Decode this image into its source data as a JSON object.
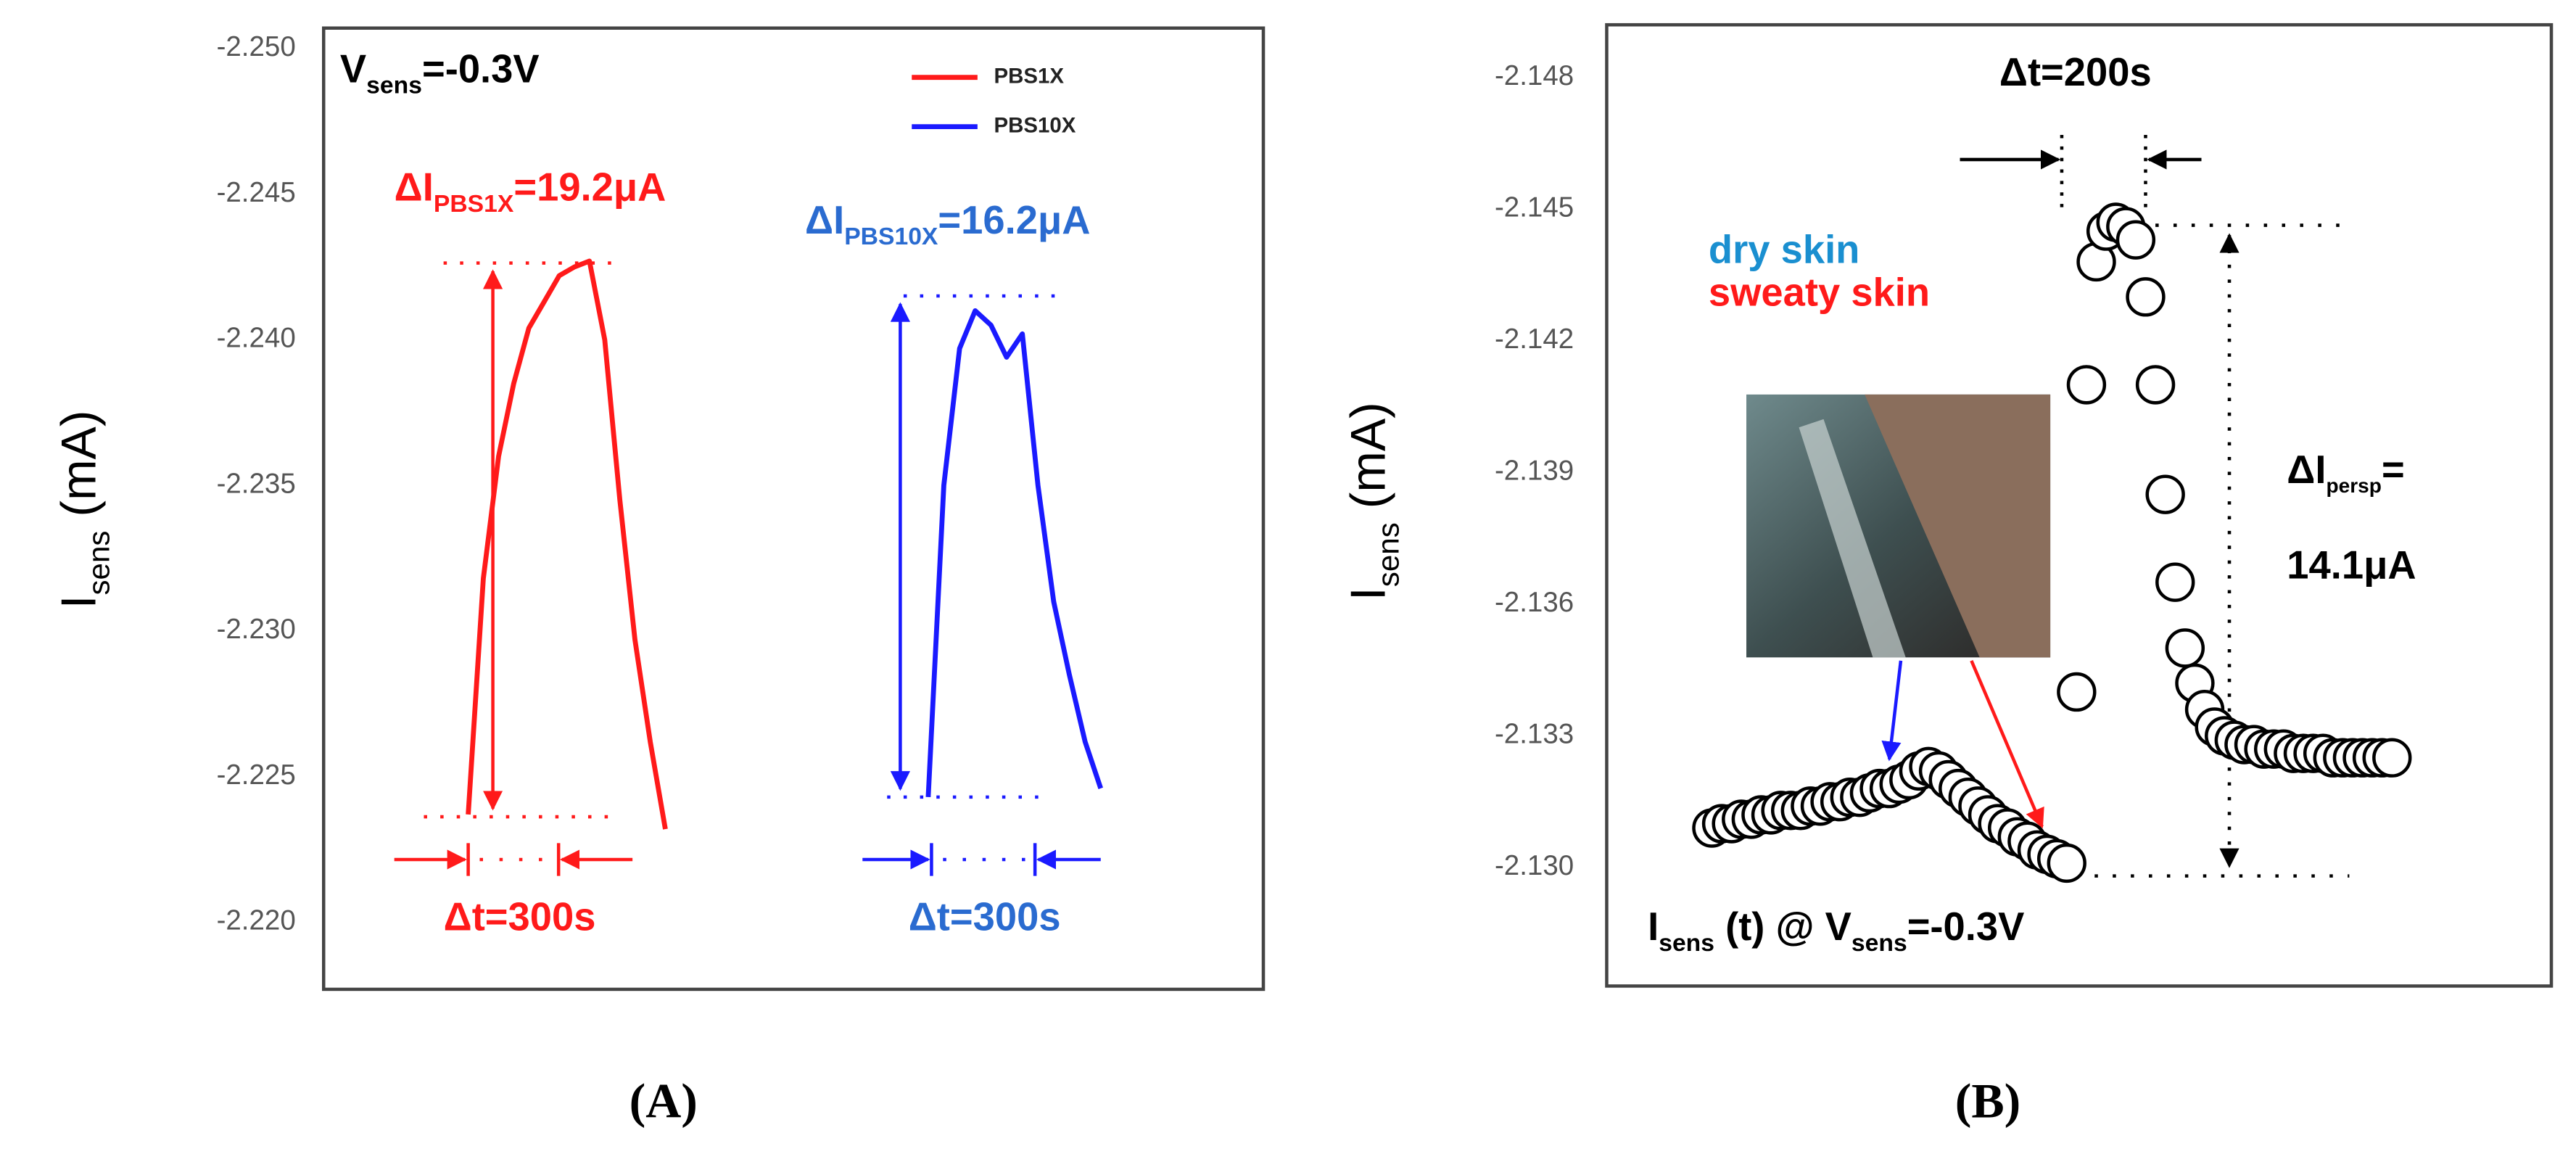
{
  "chart_data": [
    {
      "type": "line",
      "ylabel": [
        "I",
        "sens",
        " (mA)"
      ],
      "ylim": [
        -2.2177,
        -2.2507
      ],
      "yticks": [
        {
          "value": -2.25,
          "label": "-2.250"
        },
        -2.245,
        {
          "value": -2.24,
          "label": "-2.240"
        },
        -2.235,
        {
          "value": -2.23,
          "label": "-2.230"
        },
        -2.225,
        {
          "value": -2.22,
          "label": "-2.220"
        }
      ],
      "series": [
        {
          "name": "PBS1X",
          "color": "#ff1a1a",
          "values": [
            -2.2237,
            -2.2318,
            -2.236,
            -2.2385,
            -2.2404,
            -2.2413,
            -2.2422,
            -2.2425,
            -2.2427,
            -2.24,
            -2.2345,
            -2.2297,
            -2.2262,
            -2.2232
          ]
        },
        {
          "name": "PBS10X",
          "color": "#1a1aff",
          "values": [
            -2.2243,
            -2.235,
            -2.2397,
            -2.241,
            -2.2405,
            -2.2394,
            -2.2402,
            -2.235,
            -2.231,
            -2.2285,
            -2.2262,
            -2.2246
          ]
        }
      ],
      "annotations": [
        [
          "V",
          "sens",
          "=-0.3V"
        ],
        [
          "ΔI",
          "PBS1X",
          "=19.2μA"
        ],
        [
          "ΔI",
          "PBS10X",
          "=16.2μA"
        ],
        [
          "Δt=300s"
        ],
        [
          "Δt=300s"
        ]
      ],
      "caption": "(A)"
    },
    {
      "type": "scatter",
      "ylabel": [
        "I",
        "sens",
        " (mA)"
      ],
      "ylim": [
        -2.1273,
        -2.1492
      ],
      "yticks": [
        -2.148,
        -2.145,
        -2.142,
        -2.139,
        -2.136,
        -2.133,
        {
          "value": -2.13,
          "label": "-2.130"
        }
      ],
      "color": "#000000",
      "values": [
        -2.1309,
        -2.131,
        -2.131,
        -2.1311,
        -2.1311,
        -2.1312,
        -2.1312,
        -2.1313,
        -2.1313,
        -2.1313,
        -2.1314,
        -2.1314,
        -2.1315,
        -2.1315,
        -2.1316,
        -2.1316,
        -2.1317,
        -2.1318,
        -2.1318,
        -2.1319,
        -2.132,
        -2.1322,
        -2.1323,
        -2.1322,
        -2.132,
        -2.1318,
        -2.1316,
        -2.1314,
        -2.1312,
        -2.131,
        -2.1309,
        -2.1307,
        -2.1306,
        -2.1304,
        -2.1303,
        -2.1302,
        -2.1301,
        -2.134,
        -2.141,
        -2.1438,
        -2.1445,
        -2.1447,
        -2.1446,
        -2.1443,
        -2.143,
        -2.141,
        -2.1385,
        -2.1365,
        -2.135,
        -2.1342,
        -2.1336,
        -2.1332,
        -2.133,
        -2.1329,
        -2.1328,
        -2.1328,
        -2.1327,
        -2.1327,
        -2.1327,
        -2.1326,
        -2.1326,
        -2.1326,
        -2.1326,
        -2.1325,
        -2.1325,
        -2.1325,
        -2.1325,
        -2.1325,
        -2.1325,
        -2.1325
      ],
      "annotations": [
        [
          "Δt=200s"
        ],
        [
          "dry skin"
        ],
        [
          "sweaty skin"
        ],
        [
          "ΔI",
          "persp",
          "="
        ],
        [
          "14.1μA"
        ],
        [
          "I",
          "sens",
          " (t) @ V",
          "sens",
          "=-0.3V"
        ]
      ],
      "caption": "(B)"
    }
  ]
}
